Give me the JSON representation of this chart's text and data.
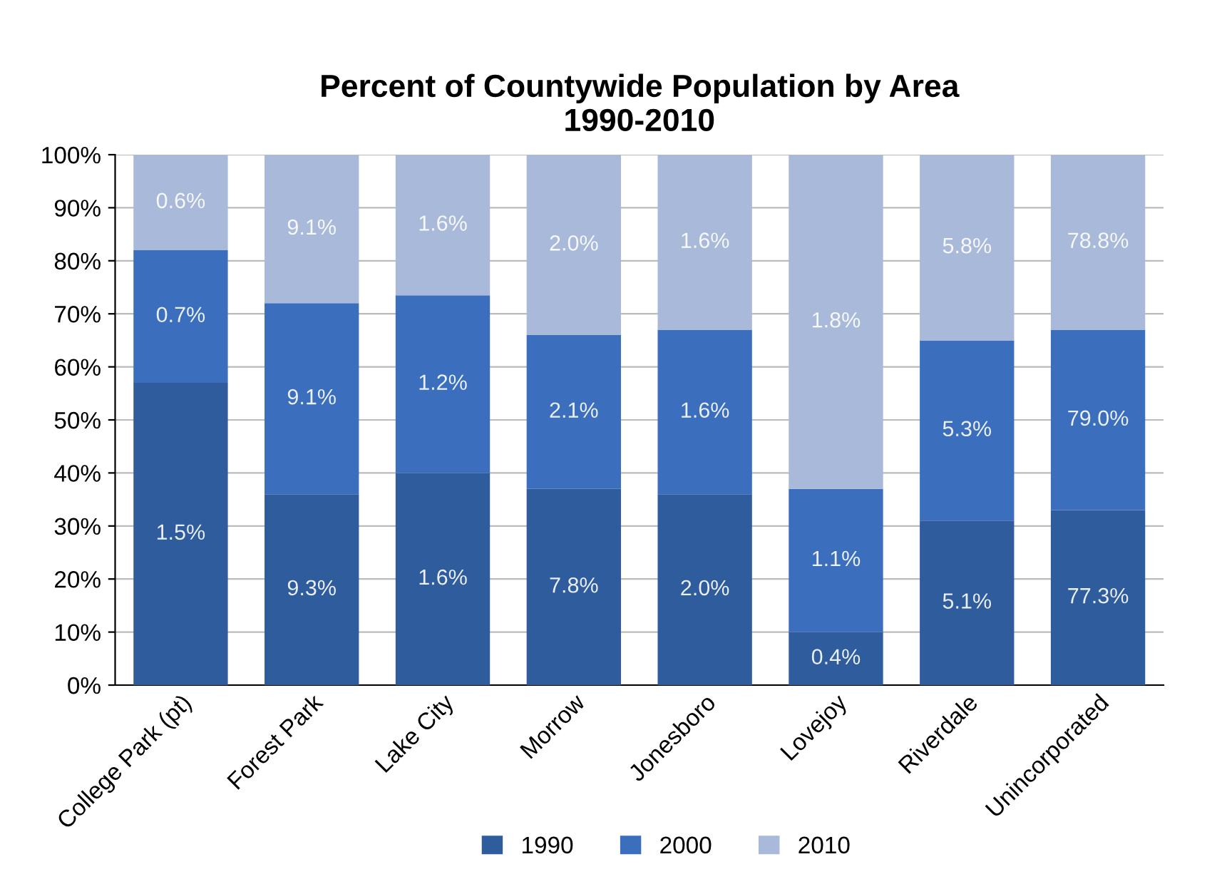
{
  "chart_data": {
    "type": "bar",
    "title": "Percent of Countywide Population by Area\n1990-2010",
    "categories": [
      "College Park (pt)",
      "Forest Park",
      "Lake City",
      "Morrow",
      "Jonesboro",
      "Lovejoy",
      "Riverdale",
      "Unincorporated"
    ],
    "stacked": true,
    "series": [
      {
        "name": "1990",
        "color": "#2f5c9c",
        "values": [
          57,
          36,
          40,
          37,
          36,
          10,
          31,
          33
        ]
      },
      {
        "name": "2000",
        "color": "#3b6fbd",
        "values": [
          25,
          36,
          33.5,
          29,
          31,
          27,
          34,
          34
        ]
      },
      {
        "name": "2010",
        "color": "#a9b9d9",
        "values": [
          18,
          28,
          26.5,
          34,
          33,
          63,
          35,
          33
        ]
      }
    ],
    "annotations": [
      "1.5%",
      "9.3%",
      "1.6%",
      "7.8%",
      "2.0%",
      "0.4%",
      "5.1%",
      "77.3%",
      "0.7%",
      "9.1%",
      "1.2%",
      "2.1%",
      "1.6%",
      "1.1%",
      "5.3%",
      "79.0%",
      "0.6%",
      "9.1%",
      "1.6%",
      "2.0%",
      "1.6%",
      "1.8%",
      "5.8%",
      "78.8%"
    ],
    "ylim": [
      0,
      100
    ],
    "yticks": [
      {
        "value": 0,
        "label": "0%"
      },
      {
        "value": 10,
        "label": "10%"
      },
      {
        "value": 20,
        "label": "20%"
      },
      {
        "value": 30,
        "label": "30%"
      },
      {
        "value": 40,
        "label": "40%"
      },
      {
        "value": 50,
        "label": "50%"
      },
      {
        "value": 60,
        "label": "60%"
      },
      {
        "value": 70,
        "label": "70%"
      },
      {
        "value": 80,
        "label": "80%"
      },
      {
        "value": 90,
        "label": "90%"
      },
      {
        "value": 100,
        "label": "100%"
      }
    ],
    "grid": "y",
    "legend": "bottom"
  }
}
